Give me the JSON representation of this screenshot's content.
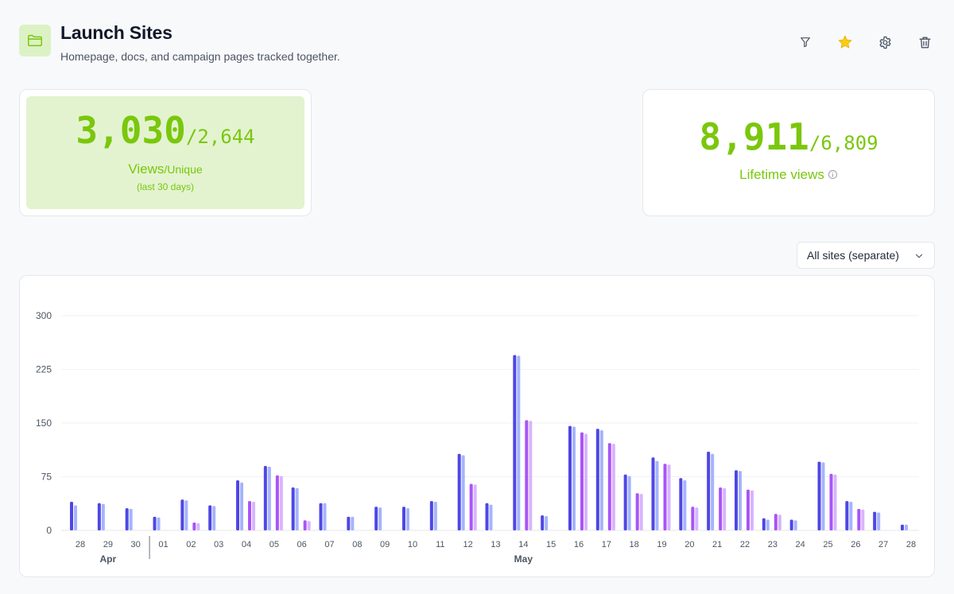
{
  "header": {
    "title": "Launch Sites",
    "subtitle": "Homepage, docs, and campaign pages tracked together.",
    "icon": "folder-icon"
  },
  "toolbar": {
    "filter_icon": "filter-icon",
    "star_icon": "star-icon",
    "settings_icon": "gear-icon",
    "delete_icon": "trash-icon"
  },
  "stats": {
    "views": "3,030",
    "unique": "/2,644",
    "views_label": "Views",
    "unique_label": "/Unique",
    "period": "(last 30 days)",
    "lifetime_views": "8,911",
    "lifetime_unique": "/6,809",
    "lifetime_label": "Lifetime views"
  },
  "filter": {
    "selected": "All sites (separate)"
  },
  "colors": {
    "accent": "#7ac70c",
    "accent_bg": "#e3f3d0",
    "star": "#facc15",
    "series_views_dark": "#4f46e5",
    "series_views_light": "#a5b4fc",
    "series_unique_dark": "#a855f7",
    "series_unique_light": "#d8b4fe"
  },
  "chart_data": {
    "type": "bar",
    "categories": [
      "28",
      "29",
      "30",
      "01",
      "02",
      "03",
      "04",
      "05",
      "06",
      "07",
      "08",
      "09",
      "10",
      "11",
      "12",
      "13",
      "14",
      "15",
      "16",
      "17",
      "18",
      "19",
      "20",
      "21",
      "22",
      "23",
      "24",
      "25",
      "26",
      "27",
      "28"
    ],
    "month_labels": [
      {
        "label": "Apr",
        "index": 1
      },
      {
        "label": "May",
        "index": 16
      }
    ],
    "month_divider_after_index": 2,
    "y_ticks": [
      0,
      75,
      150,
      225,
      300
    ],
    "ylim": [
      0,
      300
    ],
    "grid": true,
    "series": [
      {
        "values": [
          40,
          38,
          31,
          19,
          43,
          35,
          70,
          90,
          60,
          38,
          19,
          33,
          33,
          41,
          107,
          38,
          245,
          21,
          146,
          142,
          78,
          102,
          73,
          110,
          84,
          17,
          15,
          96,
          41,
          26,
          8
        ]
      },
      {
        "values": [
          35,
          37,
          30,
          18,
          42,
          34,
          67,
          89,
          59,
          38,
          19,
          32,
          31,
          40,
          105,
          36,
          244,
          20,
          145,
          140,
          76,
          97,
          70,
          107,
          83,
          15,
          14,
          95,
          40,
          25,
          8
        ]
      },
      {
        "values": [
          0,
          0,
          0,
          0,
          11,
          0,
          41,
          77,
          14,
          0,
          0,
          0,
          0,
          0,
          65,
          0,
          154,
          0,
          137,
          122,
          52,
          93,
          33,
          60,
          57,
          23,
          0,
          79,
          30,
          0,
          0
        ]
      },
      {
        "values": [
          0,
          0,
          0,
          0,
          10,
          0,
          40,
          76,
          13,
          0,
          0,
          0,
          0,
          0,
          64,
          0,
          153,
          0,
          135,
          121,
          51,
          92,
          32,
          59,
          56,
          22,
          0,
          78,
          29,
          0,
          0
        ]
      }
    ]
  }
}
